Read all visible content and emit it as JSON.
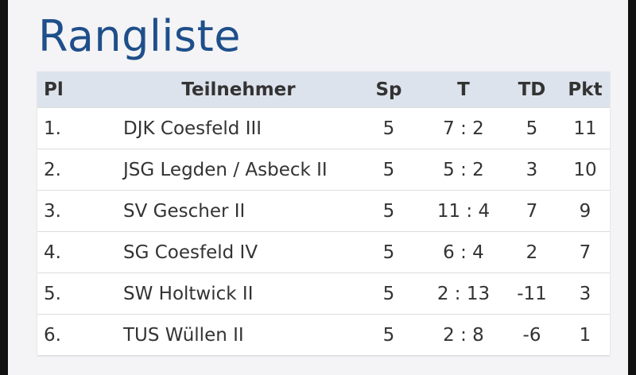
{
  "header": {
    "title": "Rangliste"
  },
  "table": {
    "columns": [
      "Pl",
      "Teilnehmer",
      "Sp",
      "T",
      "TD",
      "Pkt"
    ],
    "rows": [
      [
        "1.",
        "DJK Coesfeld III",
        5,
        "7 : 2",
        5,
        11
      ],
      [
        "2.",
        "JSG Legden / Asbeck II",
        5,
        "5 : 2",
        3,
        10
      ],
      [
        "3.",
        "SV Gescher II",
        5,
        "11 : 4",
        7,
        9
      ],
      [
        "4.",
        "SG Coesfeld IV",
        5,
        "6 : 4",
        2,
        7
      ],
      [
        "5.",
        "SW Holtwick II",
        5,
        "2 : 13",
        -11,
        3
      ],
      [
        "6.",
        "TUS Wüllen II",
        5,
        "2 : 8",
        -6,
        1
      ]
    ]
  }
}
